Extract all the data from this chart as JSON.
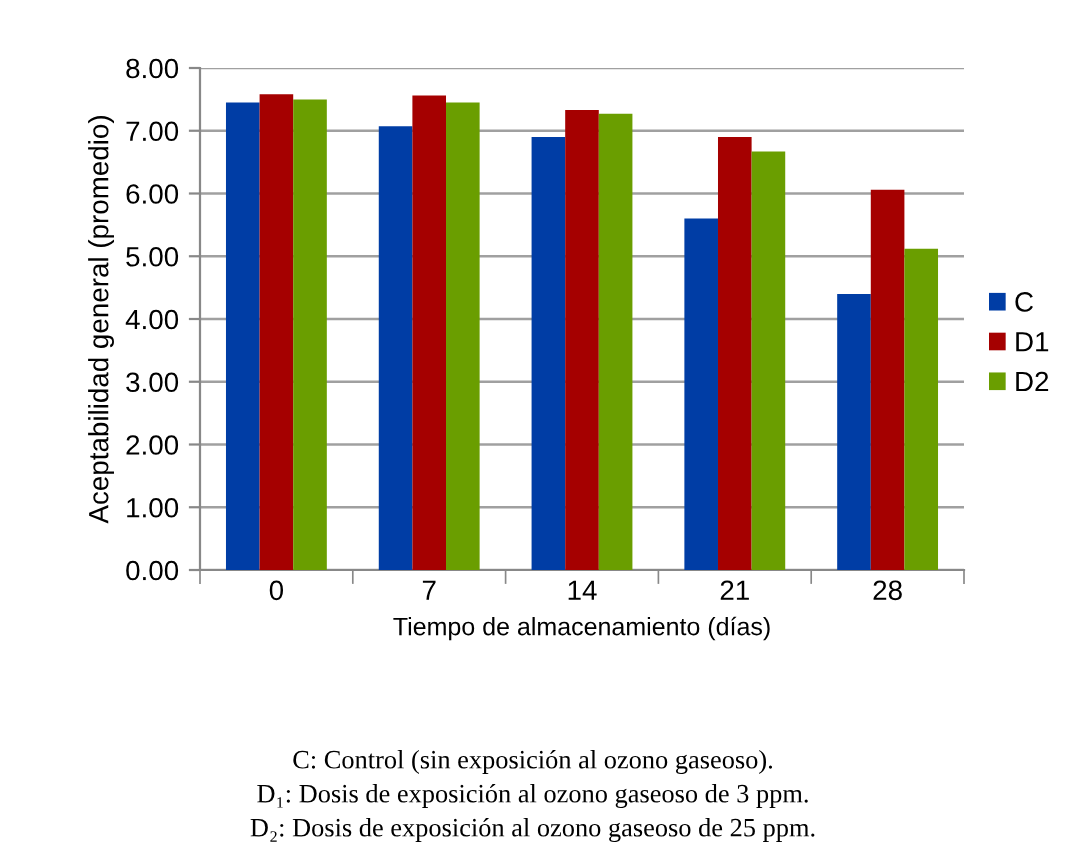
{
  "chart_data": {
    "type": "bar",
    "xlabel": "Tiempo de almacenamiento (días)",
    "ylabel": "Aceptabilidad general (promedio)",
    "categories": [
      "0",
      "7",
      "14",
      "21",
      "28"
    ],
    "series": [
      {
        "name": "C",
        "color": "#003da5",
        "values": [
          7.45,
          7.07,
          6.9,
          5.6,
          4.4
        ]
      },
      {
        "name": "D1",
        "color": "#a50000",
        "values": [
          7.58,
          7.56,
          7.33,
          6.9,
          6.06
        ]
      },
      {
        "name": "D2",
        "color": "#6a9e00",
        "values": [
          7.5,
          7.45,
          7.27,
          6.67,
          5.12
        ]
      }
    ],
    "ylim": [
      0,
      8
    ],
    "yticks": [
      {
        "value": 0,
        "label": "0.00"
      },
      {
        "value": 1,
        "label": "1.00"
      },
      {
        "value": 2,
        "label": "2.00"
      },
      {
        "value": 3,
        "label": "3.00"
      },
      {
        "value": 4,
        "label": "4.00"
      },
      {
        "value": 5,
        "label": "5.00"
      },
      {
        "value": 6,
        "label": "6.00"
      },
      {
        "value": 7,
        "label": "7.00"
      },
      {
        "value": 8,
        "label": "8.00"
      }
    ],
    "grid": "y",
    "legend": "right",
    "annotations": [
      "C: Control (sin exposición al ozono gaseoso).",
      "D₁: Dosis de exposición al ozono gaseoso de 3 ppm.",
      "D₂: Dosis de exposición al ozono gaseoso de 25 ppm."
    ]
  }
}
